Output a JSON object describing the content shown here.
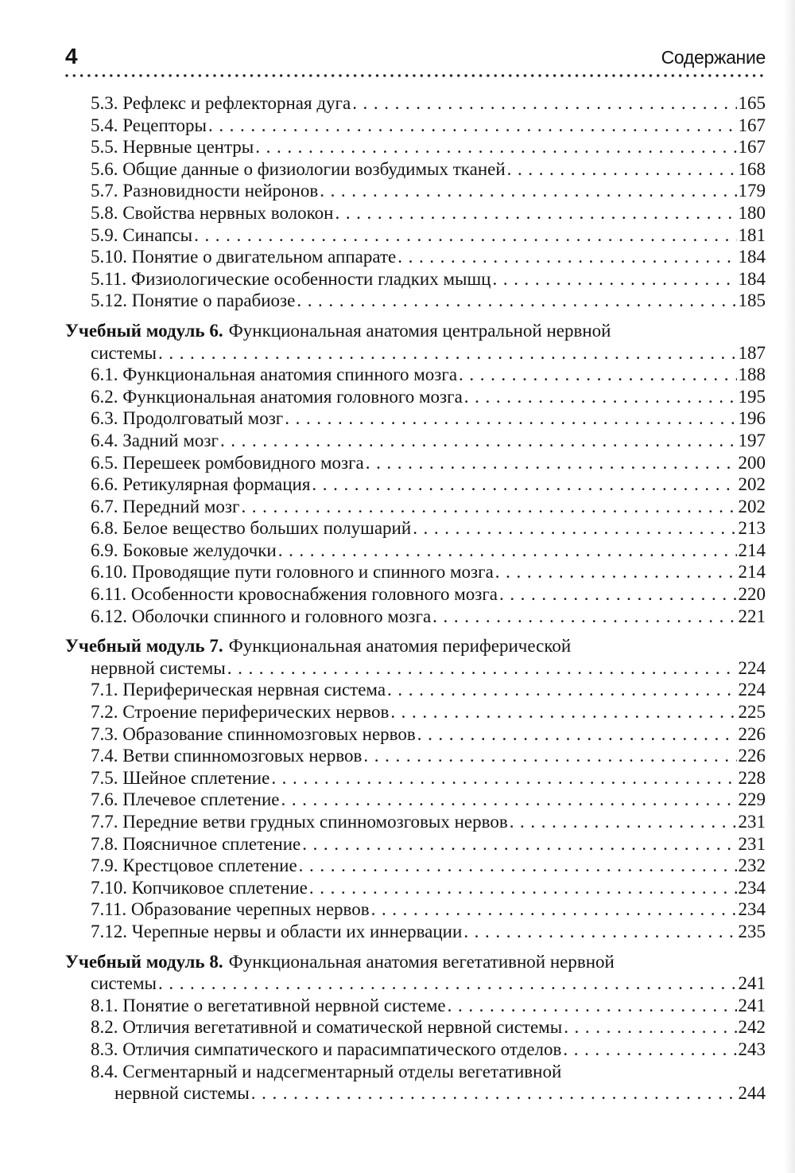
{
  "colors": {
    "background": "#ffffff",
    "text": "#131313"
  },
  "header": {
    "page_number": "4",
    "title": "Содержание"
  },
  "entries": [
    {
      "kind": "item",
      "label": "5.3. Рефлекс и рефлекторная дуга",
      "page": "165"
    },
    {
      "kind": "item",
      "label": "5.4. Рецепторы",
      "page": "167"
    },
    {
      "kind": "item",
      "label": "5.5. Нервные центры",
      "page": "167"
    },
    {
      "kind": "item",
      "label": "5.6. Общие данные о физиологии возбудимых тканей",
      "page": "168"
    },
    {
      "kind": "item",
      "label": "5.7. Разновидности нейронов",
      "page": "179"
    },
    {
      "kind": "item",
      "label": "5.8. Свойства нервных волокон",
      "page": "180"
    },
    {
      "kind": "item",
      "label": "5.9. Синапсы",
      "page": "181"
    },
    {
      "kind": "item",
      "label": "5.10. Понятие о двигательном аппарате",
      "page": "184"
    },
    {
      "kind": "item",
      "label": "5.11. Физиологические особенности гладких мышц",
      "page": "184"
    },
    {
      "kind": "item",
      "label": "5.12. Понятие о парабиозе",
      "page": "185"
    },
    {
      "kind": "module",
      "bold": "Учебный модуль 6.",
      "label": "Функциональная анатомия центральной нервной",
      "page": ""
    },
    {
      "kind": "cont",
      "label": "системы",
      "page": "187"
    },
    {
      "kind": "item",
      "label": "6.1. Функциональная анатомия спинного мозга",
      "page": "188"
    },
    {
      "kind": "item",
      "label": "6.2. Функциональная анатомия головного мозга",
      "page": "195"
    },
    {
      "kind": "item",
      "label": "6.3. Продолговатый мозг",
      "page": "196"
    },
    {
      "kind": "item",
      "label": "6.4. Задний мозг",
      "page": "197"
    },
    {
      "kind": "item",
      "label": "6.5. Перешеек ромбовидного мозга",
      "page": "200"
    },
    {
      "kind": "item",
      "label": "6.6. Ретикулярная формация",
      "page": "202"
    },
    {
      "kind": "item",
      "label": "6.7. Передний мозг",
      "page": "202"
    },
    {
      "kind": "item",
      "label": "6.8. Белое вещество больших полушарий",
      "page": "213"
    },
    {
      "kind": "item",
      "label": "6.9. Боковые желудочки",
      "page": "214"
    },
    {
      "kind": "item",
      "label": "6.10. Проводящие пути головного и спинного мозга",
      "page": "214"
    },
    {
      "kind": "item",
      "label": "6.11. Особенности кровоснабжения головного мозга",
      "page": "220"
    },
    {
      "kind": "item",
      "label": "6.12. Оболочки спинного и головного мозга",
      "page": "221"
    },
    {
      "kind": "module",
      "bold": "Учебный модуль 7.",
      "label": "Функциональная анатомия периферической",
      "page": ""
    },
    {
      "kind": "cont",
      "label": "нервной системы",
      "page": "224"
    },
    {
      "kind": "item",
      "label": "7.1. Периферическая нервная система",
      "page": "224"
    },
    {
      "kind": "item",
      "label": "7.2. Строение периферических нервов",
      "page": "225"
    },
    {
      "kind": "item",
      "label": "7.3. Образование спинномозговых нервов",
      "page": "226"
    },
    {
      "kind": "item",
      "label": "7.4. Ветви спинномозговых нервов",
      "page": "226"
    },
    {
      "kind": "item",
      "label": "7.5. Шейное сплетение",
      "page": "228"
    },
    {
      "kind": "item",
      "label": "7.6. Плечевое сплетение",
      "page": "229"
    },
    {
      "kind": "item",
      "label": "7.7. Передние ветви грудных спинномозговых нервов",
      "page": "231"
    },
    {
      "kind": "item",
      "label": "7.8. Поясничное сплетение",
      "page": "231"
    },
    {
      "kind": "item",
      "label": "7.9. Крестцовое сплетение",
      "page": "232"
    },
    {
      "kind": "item",
      "label": "7.10. Копчиковое сплетение",
      "page": "234"
    },
    {
      "kind": "item",
      "label": "7.11. Образование черепных нервов",
      "page": "234"
    },
    {
      "kind": "item",
      "label": "7.12. Черепные нервы и области их иннервации",
      "page": "235"
    },
    {
      "kind": "module",
      "bold": "Учебный модуль 8.",
      "label": "Функциональная анатомия вегетативной нервной",
      "page": ""
    },
    {
      "kind": "cont",
      "label": "системы",
      "page": "241"
    },
    {
      "kind": "item",
      "label": "8.1. Понятие о вегетативной нервной системе",
      "page": "241"
    },
    {
      "kind": "item",
      "label": "8.2. Отличия вегетативной и соматической нервной системы",
      "page": "242"
    },
    {
      "kind": "item",
      "label": "8.3. Отличия симпатического и парасимпатического отделов",
      "page": "243"
    },
    {
      "kind": "item",
      "label": "8.4. Сегментарный и надсегментарный отделы вегетативной",
      "page": ""
    },
    {
      "kind": "cont2",
      "label": "нервной системы",
      "page": "244"
    }
  ]
}
